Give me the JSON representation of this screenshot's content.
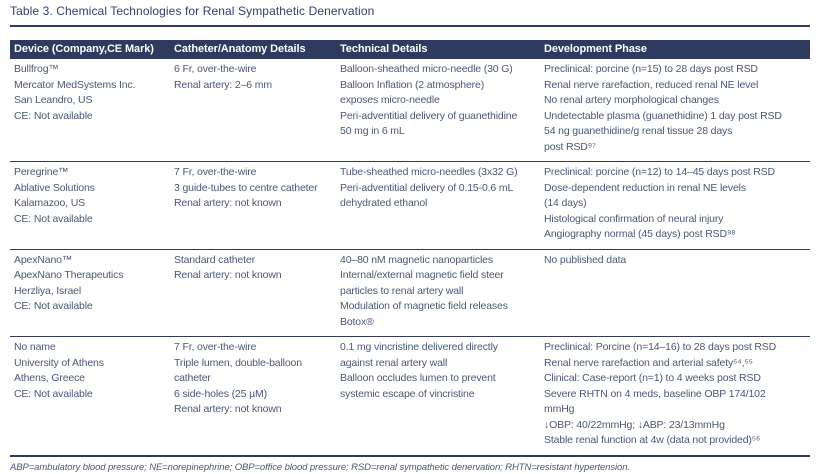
{
  "title": "Table 3. Chemical Technologies for Renal Sympathetic Denervation",
  "colors": {
    "header_bg": "#2e3a5e",
    "rule": "#2e3a5e",
    "title_text": "#31406f",
    "body_text": "#4b5878",
    "header_text": "#ffffff"
  },
  "table": {
    "columns": [
      "Device (Company,CE Mark)",
      "Catheter/Anatomy Details",
      "Technical Details",
      "Development Phase"
    ],
    "rows": [
      {
        "device": [
          "Bullfrog™",
          "Mercator MedSystems Inc.",
          "San Leandro, US",
          "CE: Not available"
        ],
        "catheter": [
          "6 Fr, over-the-wire",
          "Renal artery: 2–6 mm"
        ],
        "technical": [
          "Balloon-sheathed micro-needle (30 G)",
          "Balloon Inflation (2 atmosphere)",
          "exposes micro-needle",
          "Peri-adventitial delivery of guanethidine",
          "50 mg in 6 mL"
        ],
        "development": [
          "Preclinical: porcine (n=15) to 28 days post RSD",
          "Renal nerve rarefaction, reduced renal NE level",
          "No renal artery morphological changes",
          "Undetectable plasma (guanethidine) 1 day post RSD",
          "54 ng guanethidine/g renal tissue 28 days",
          "post RSD⁹⁷"
        ]
      },
      {
        "device": [
          "Peregrine™",
          "Ablative Solutions",
          "Kalamazoo, US",
          "CE: Not available"
        ],
        "catheter": [
          "7 Fr, over-the-wire",
          "3 guide-tubes to centre catheter",
          "Renal artery: not known"
        ],
        "technical": [
          "Tube-sheathed micro-needles (3x32 G)",
          "Peri-adventitial delivery of 0.15-0.6 mL",
          "dehydrated ethanol"
        ],
        "development": [
          "Preclinical: porcine (n=12) to 14–45 days post RSD",
          "Dose-dependent reduction in renal NE levels",
          "(14 days)",
          "Histological confirmation of neural injury",
          "Angiography normal (45 days) post RSD⁹⁸"
        ]
      },
      {
        "device": [
          "ApexNano™",
          "ApexNano Therapeutics",
          "Herzliya, Israel",
          "CE: Not available"
        ],
        "catheter": [
          "Standard catheter",
          "Renal artery: not known"
        ],
        "technical": [
          "40–80 nM magnetic nanoparticles",
          "Internal/external magnetic field steer",
          "particles to renal artery wall",
          "Modulation of magnetic field releases",
          "Botox®"
        ],
        "development": [
          "No published data"
        ]
      },
      {
        "device": [
          "No name",
          "University of Athens",
          "Athens, Greece",
          "CE: Not available"
        ],
        "catheter": [
          "7 Fr, over-the-wire",
          "Triple lumen, double-balloon",
          "catheter",
          "6 side-holes (25 µM)",
          "Renal artery: not known"
        ],
        "technical": [
          "0.1 mg vincristine delivered directly",
          "against renal artery wall",
          "Balloon occludes lumen to prevent",
          "systemic escape of vincristine"
        ],
        "development": [
          "Preclinical: Porcine (n=14–16) to 28 days post RSD",
          "Renal nerve rarefaction and arterial safety⁵⁴,⁵⁵",
          "Clinical: Case-report (n=1) to 4 weeks post RSD",
          "Severe RHTN on 4 meds, baseline OBP 174/102",
          "mmHg",
          "↓OBP: 40/22mmHg; ↓ABP: 23/13mmHg",
          "Stable renal function at 4w (data not provided)⁵⁶"
        ]
      }
    ]
  },
  "footnote": "ABP=ambulatory blood pressure; NE=norepinephrine; OBP=office blood pressure; RSD=renal sympathetic denervation; RHTN=resistant hypertension."
}
